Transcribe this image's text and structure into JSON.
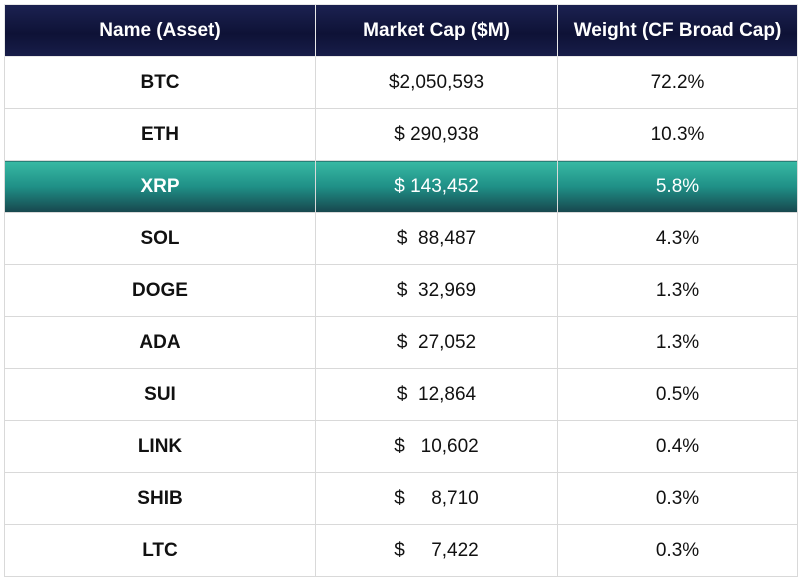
{
  "chart_data": {
    "type": "table",
    "columns": [
      "Name (Asset)",
      "Market Cap ($M)",
      "Weight (CF Broad Cap)"
    ],
    "rows": [
      {
        "asset": "BTC",
        "market_cap": "$2,050,593",
        "weight": "72.2%"
      },
      {
        "asset": "ETH",
        "market_cap": "$ 290,938",
        "weight": "10.3%"
      },
      {
        "asset": "XRP",
        "market_cap": "$ 143,452",
        "weight": "5.8%"
      },
      {
        "asset": "SOL",
        "market_cap": "$  88,487",
        "weight": "4.3%"
      },
      {
        "asset": "DOGE",
        "market_cap": "$  32,969",
        "weight": "1.3%"
      },
      {
        "asset": "ADA",
        "market_cap": "$  27,052",
        "weight": "1.3%"
      },
      {
        "asset": "SUI",
        "market_cap": "$  12,864",
        "weight": "0.5%"
      },
      {
        "asset": "LINK",
        "market_cap": "$   10,602",
        "weight": "0.4%"
      },
      {
        "asset": "SHIB",
        "market_cap": "$     8,710",
        "weight": "0.3%"
      },
      {
        "asset": "LTC",
        "market_cap": "$     7,422",
        "weight": "0.3%"
      }
    ],
    "highlighted_row": "XRP",
    "colors": {
      "header": "#10143a",
      "highlight": "#1f8f86"
    }
  }
}
